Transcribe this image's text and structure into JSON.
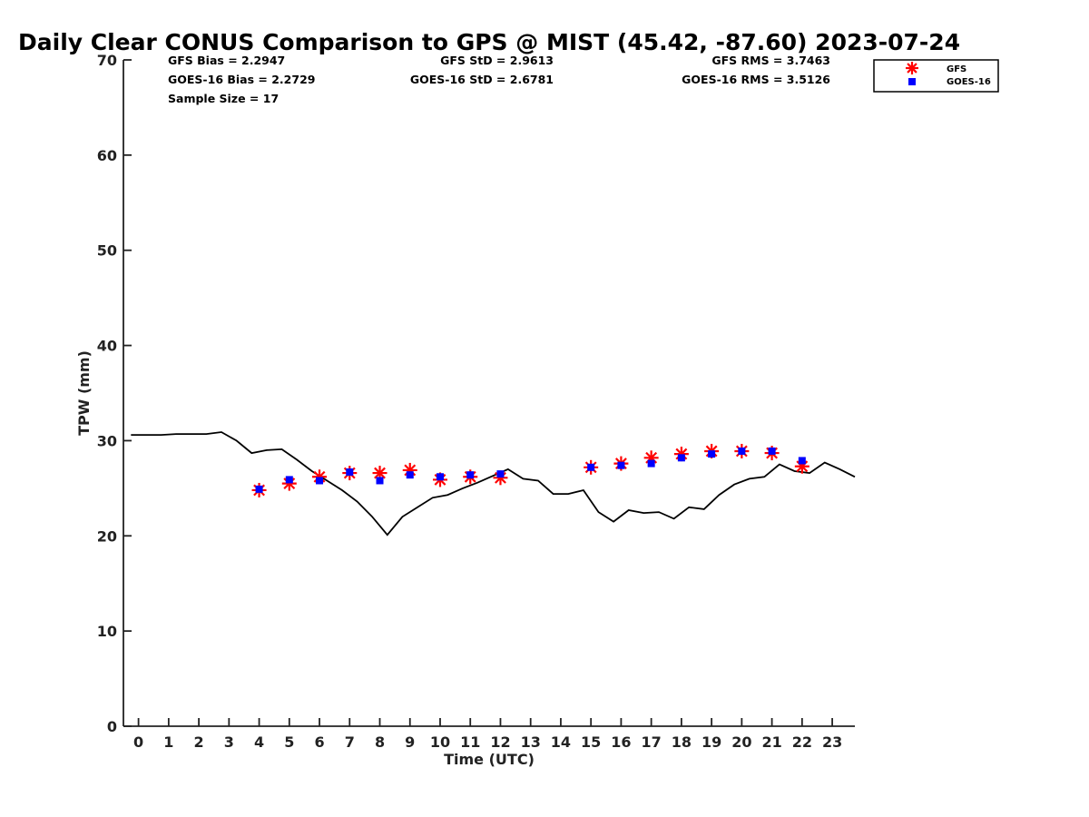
{
  "chart_data": {
    "type": "scatter",
    "title": "Daily Clear CONUS Comparison to GPS @ MIST (45.42, -87.60) 2023-07-24",
    "xlabel": "Time (UTC)",
    "ylabel": "TPW (mm)",
    "xlim": [
      -0.5,
      23.75
    ],
    "ylim": [
      0,
      70
    ],
    "x_ticks": [
      0,
      1,
      2,
      3,
      4,
      5,
      6,
      7,
      8,
      9,
      10,
      11,
      12,
      13,
      14,
      15,
      16,
      17,
      18,
      19,
      20,
      21,
      22,
      23
    ],
    "y_ticks": [
      0,
      10,
      20,
      30,
      40,
      50,
      60,
      70
    ],
    "grid": false,
    "legend_position": "top-right",
    "stats": {
      "gfs_bias": "GFS Bias = 2.2947",
      "goes_bias": "GOES-16 Bias = 2.2729",
      "sample_size": "Sample Size = 17",
      "gfs_std": "GFS StD = 2.9613",
      "goes_std": "GOES-16 StD = 2.6781",
      "gfs_rms": "GFS RMS = 3.7463",
      "goes_rms": "GOES-16 RMS = 3.5126"
    },
    "series": [
      {
        "name": "GFS",
        "marker": "asterisk",
        "color": "#ff0000",
        "x": [
          4,
          5,
          6,
          7,
          8,
          9,
          10,
          11,
          12,
          15,
          16,
          17,
          18,
          19,
          20,
          21,
          22
        ],
        "y": [
          24.8,
          25.5,
          26.2,
          26.6,
          26.6,
          26.9,
          25.9,
          26.2,
          26.1,
          27.2,
          27.6,
          28.2,
          28.6,
          28.9,
          28.9,
          28.7,
          27.3
        ]
      },
      {
        "name": "GOES-16",
        "marker": "square",
        "color": "#0000ff",
        "x": [
          4,
          5,
          6,
          7,
          8,
          9,
          10,
          11,
          12,
          15,
          16,
          17,
          18,
          19,
          20,
          21,
          22
        ],
        "y": [
          24.9,
          25.9,
          25.8,
          26.7,
          25.8,
          26.4,
          26.2,
          26.4,
          26.5,
          27.2,
          27.4,
          27.6,
          28.2,
          28.6,
          28.9,
          28.9,
          27.9
        ]
      },
      {
        "marker": "line",
        "color": "#000000",
        "x": [
          -0.25,
          0.25,
          0.75,
          1.25,
          1.75,
          2.25,
          2.75,
          3.25,
          3.75,
          4.25,
          4.75,
          5.25,
          5.75,
          6.25,
          6.75,
          7.25,
          7.75,
          8.25,
          8.75,
          9.25,
          9.75,
          10.25,
          10.75,
          11.25,
          11.75,
          12.25,
          12.75,
          13.25,
          13.75,
          14.25,
          14.75,
          15.25,
          15.75,
          16.25,
          16.75,
          17.25,
          17.75,
          18.25,
          18.75,
          19.25,
          19.75,
          20.25,
          20.75,
          21.25,
          21.75,
          22.25,
          22.75,
          23.25,
          23.75
        ],
        "y": [
          30.6,
          30.6,
          30.6,
          30.7,
          30.7,
          30.7,
          30.9,
          30.0,
          28.7,
          29.0,
          29.1,
          28.0,
          26.8,
          25.8,
          24.8,
          23.6,
          22.0,
          20.1,
          22.0,
          23.0,
          24.0,
          24.3,
          25.0,
          25.6,
          26.3,
          27.0,
          26.0,
          25.8,
          24.4,
          24.4,
          24.8,
          22.5,
          21.5,
          22.7,
          22.4,
          22.5,
          21.8,
          23.0,
          22.8,
          24.3,
          25.4,
          26.0,
          26.2,
          27.5,
          26.8,
          26.6,
          27.7,
          27.0,
          26.2
        ]
      }
    ]
  }
}
